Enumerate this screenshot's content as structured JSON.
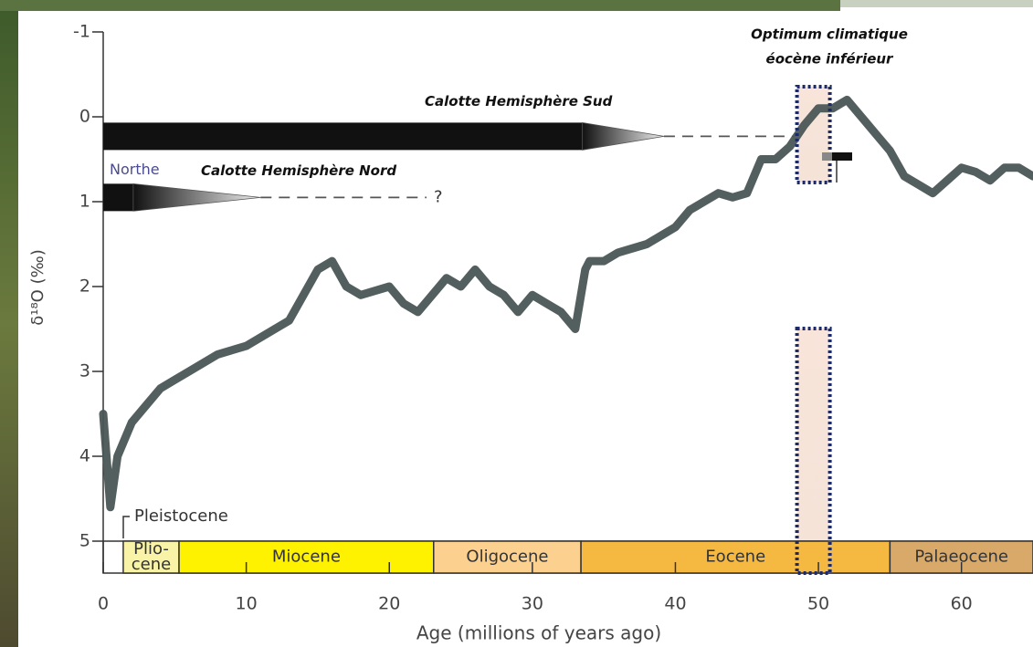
{
  "chart_data": {
    "type": "line",
    "x_label": "Age (millions of years ago)",
    "y_label": "δ¹⁸O (‰)",
    "xlim": [
      0,
      65
    ],
    "xticks": [
      0,
      10,
      20,
      30,
      40,
      50,
      60
    ],
    "ylim": [
      5,
      -1
    ],
    "yticks": [
      -1,
      0,
      1,
      2,
      3,
      4,
      5
    ],
    "series": [
      {
        "color": "#4a5656",
        "x": [
          0,
          0.5,
          1,
          2,
          3,
          4,
          5,
          6,
          8,
          10,
          12,
          13,
          14,
          15,
          16,
          17,
          18,
          20,
          21,
          22,
          24,
          25,
          26,
          27,
          28,
          29,
          30,
          31,
          32,
          33,
          33.7,
          34,
          35,
          36,
          38,
          40,
          41,
          42,
          43,
          44,
          45,
          46,
          47,
          48,
          49,
          50,
          51,
          52,
          53,
          54,
          55,
          56,
          57,
          58,
          59,
          60,
          61,
          62,
          63,
          64,
          65
        ],
        "values": [
          3.5,
          4.6,
          4.0,
          3.6,
          3.4,
          3.2,
          3.1,
          3.0,
          2.8,
          2.7,
          2.5,
          2.4,
          2.1,
          1.8,
          1.7,
          2.0,
          2.1,
          2.0,
          2.2,
          2.3,
          1.9,
          2.0,
          1.8,
          2.0,
          2.1,
          2.3,
          2.1,
          2.2,
          2.3,
          2.5,
          1.8,
          1.7,
          1.7,
          1.6,
          1.5,
          1.3,
          1.1,
          1.0,
          0.9,
          0.95,
          0.9,
          0.5,
          0.5,
          0.35,
          0.1,
          -0.1,
          -0.1,
          -0.2,
          0.0,
          0.2,
          0.4,
          0.7,
          0.8,
          0.9,
          0.75,
          0.6,
          0.65,
          0.75,
          0.6,
          0.6,
          0.7
        ]
      }
    ],
    "epochs": [
      {
        "lines": [
          "Plio-",
          "cene"
        ],
        "start": 1.4,
        "end": 5.3,
        "color": "#f8f3a6"
      },
      {
        "lines": [
          "Miocene"
        ],
        "start": 5.3,
        "end": 23.1,
        "color": "#fff200"
      },
      {
        "lines": [
          "Oligocene"
        ],
        "start": 23.1,
        "end": 33.4,
        "color": "#fcd08e"
      },
      {
        "lines": [
          "Eocene"
        ],
        "start": 33.4,
        "end": 55,
        "color": "#f5b942"
      },
      {
        "lines": [
          "Palaeocene"
        ],
        "start": 55,
        "end": 65,
        "color": "#d9a96a"
      }
    ],
    "pleistocene_label": "Pleistocene",
    "ice_sheets": [
      {
        "label": "Calotte Hemisphère Sud",
        "y": 0.23,
        "solid_end": 33.5,
        "taper_end": 39.2,
        "dashed_end": 48.3
      },
      {
        "label": "Calotte Hemisphère Nord",
        "partial_label": "Northe",
        "end_label": "?",
        "y": 0.95,
        "solid_end": 2.1,
        "taper_end": 11,
        "dashed_end": 22.6
      }
    ],
    "optimum": {
      "lines": [
        "Optimum climatique",
        "éocène inférieur"
      ],
      "start": 48.5,
      "end": 50.8
    }
  }
}
